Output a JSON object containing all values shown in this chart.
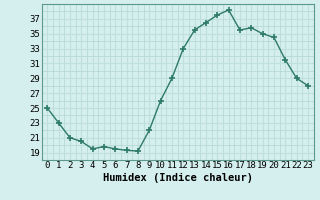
{
  "x": [
    0,
    1,
    2,
    3,
    4,
    5,
    6,
    7,
    8,
    9,
    10,
    11,
    12,
    13,
    14,
    15,
    16,
    17,
    18,
    19,
    20,
    21,
    22,
    23
  ],
  "y": [
    25,
    23,
    21,
    20.5,
    19.5,
    19.8,
    19.5,
    19.3,
    19.2,
    22,
    26,
    29,
    33,
    35.5,
    36.5,
    37.5,
    38.2,
    35.5,
    35.8,
    35,
    34.5,
    31.5,
    29,
    28
  ],
  "line_color": "#2d7a6a",
  "marker": "+",
  "marker_size": 4,
  "marker_lw": 1.2,
  "bg_color": "#d5eeee",
  "grid_minor_color": "#b8d8d8",
  "grid_major_color": "#c0e0e0",
  "ylim": [
    18,
    39
  ],
  "yticks_major": [
    19,
    21,
    23,
    25,
    27,
    29,
    31,
    33,
    35,
    37
  ],
  "yticks_minor": [
    20,
    22,
    24,
    26,
    28,
    30,
    32,
    34,
    36,
    38
  ],
  "xlim": [
    -0.5,
    23.5
  ],
  "xticks": [
    0,
    1,
    2,
    3,
    4,
    5,
    6,
    7,
    8,
    9,
    10,
    11,
    12,
    13,
    14,
    15,
    16,
    17,
    18,
    19,
    20,
    21,
    22,
    23
  ],
  "xlabel": "Humidex (Indice chaleur)",
  "xlabel_fontsize": 7.5,
  "tick_fontsize": 6.5,
  "line_width": 1.0
}
